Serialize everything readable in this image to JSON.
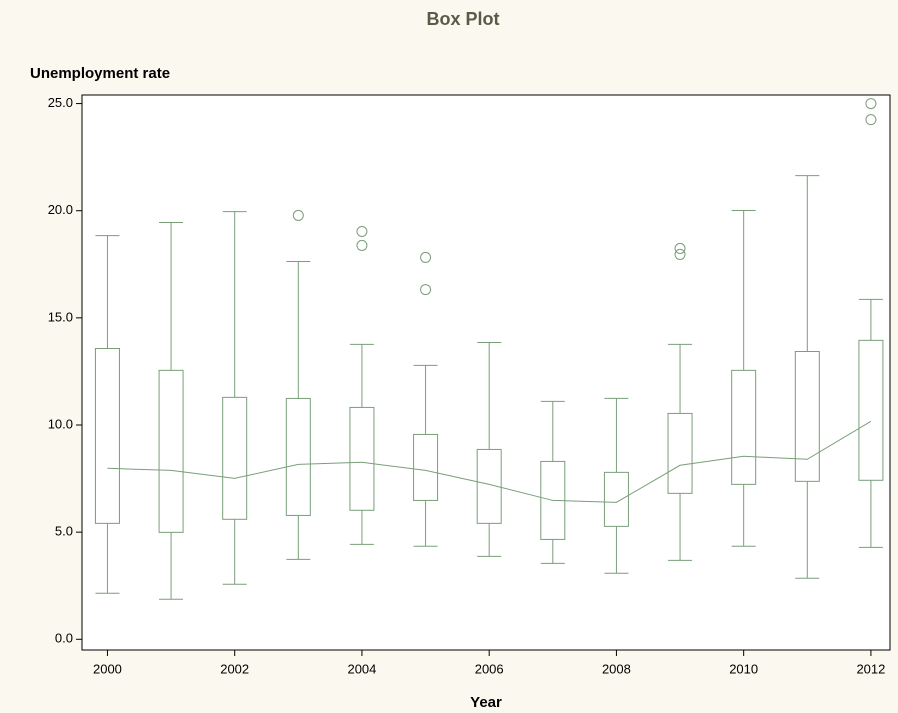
{
  "chart_data": {
    "type": "box",
    "title": "Box Plot",
    "y_label": "Unemployment rate",
    "x_label": "Year",
    "color": "#7a9e7a",
    "x": [
      2000,
      2001,
      2002,
      2003,
      2004,
      2005,
      2006,
      2007,
      2008,
      2009,
      2010,
      2011,
      2012
    ],
    "low": [
      2.15,
      1.87,
      2.57,
      3.73,
      4.43,
      4.34,
      3.87,
      3.54,
      3.08,
      3.68,
      4.34,
      2.85,
      4.29
    ],
    "q1": [
      5.41,
      4.99,
      5.6,
      5.78,
      6.02,
      6.48,
      5.41,
      4.66,
      5.27,
      6.81,
      7.23,
      7.37,
      7.42
    ],
    "q3": [
      13.57,
      12.55,
      11.29,
      11.24,
      10.82,
      9.56,
      8.86,
      8.3,
      7.79,
      10.54,
      12.55,
      13.43,
      13.95
    ],
    "high": [
      18.84,
      19.45,
      19.96,
      17.63,
      13.76,
      12.78,
      13.85,
      11.1,
      11.24,
      13.76,
      20.01,
      21.64,
      15.86
    ],
    "mean": [
      7.98,
      7.88,
      7.51,
      8.16,
      8.26,
      7.88,
      7.23,
      6.48,
      6.39,
      8.12,
      8.54,
      8.4,
      10.17
    ],
    "outliers": [
      [],
      [],
      [],
      [
        19.78
      ],
      [
        19.03,
        18.38
      ],
      [
        17.82,
        16.32
      ],
      [],
      [],
      [],
      [
        18.24,
        17.96
      ],
      [],
      [],
      [
        25.0,
        24.25
      ]
    ],
    "xlim": [
      1999.6,
      2012.3
    ],
    "xticks": [
      2000,
      2002,
      2004,
      2006,
      2008,
      2010,
      2012
    ],
    "ylim": [
      -0.5,
      25.4
    ],
    "yticks": [
      {
        "value": 0,
        "label": "0.0"
      },
      {
        "value": 5,
        "label": "5.0"
      },
      {
        "value": 10,
        "label": "10.0"
      },
      {
        "value": 15,
        "label": "15.0"
      },
      {
        "value": 20,
        "label": "20.0"
      },
      {
        "value": 25,
        "label": "25.0"
      }
    ]
  }
}
